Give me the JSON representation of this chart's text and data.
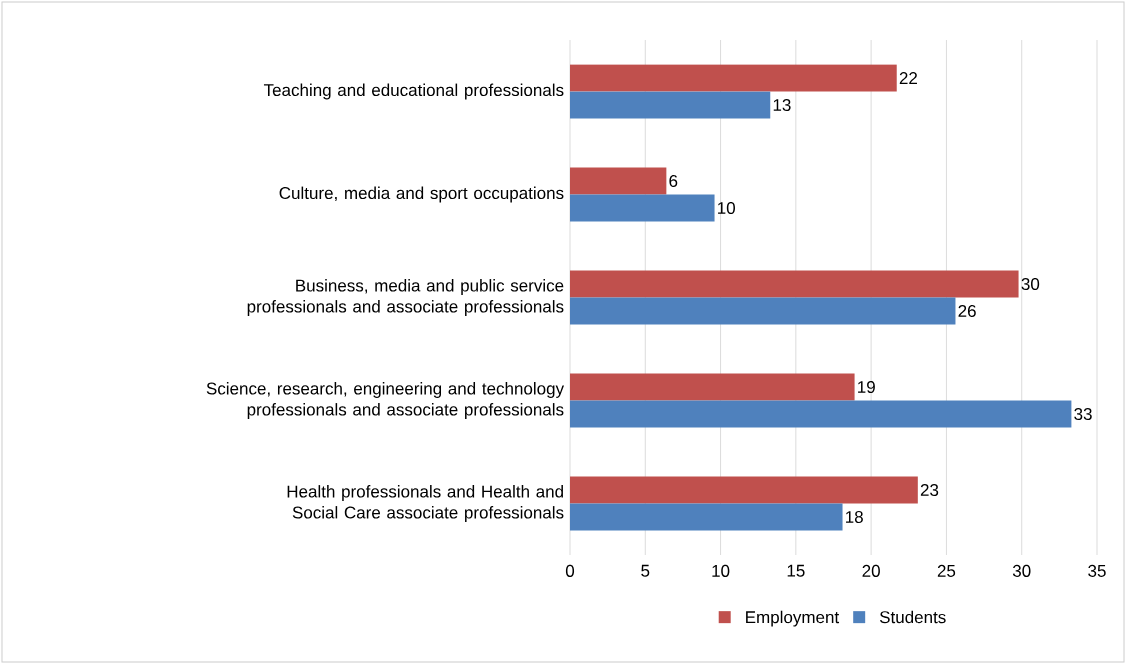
{
  "chart_data": {
    "type": "bar",
    "orientation": "horizontal",
    "categories": [
      "Teaching and educational professionals",
      "Culture, media and sport occupations",
      "Business, media and public service professionals and associate professionals",
      "Science, research, engineering and technology professionals and associate professionals",
      "Health professionals and Health and Social Care associate professionals"
    ],
    "series": [
      {
        "name": "Employment",
        "color": "#c0504d",
        "values": [
          21.7,
          6.4,
          29.8,
          18.9,
          23.1
        ],
        "value_labels": [
          "22",
          "6",
          "30",
          "19",
          "23"
        ]
      },
      {
        "name": "Students",
        "color": "#4f81bd",
        "values": [
          13.3,
          9.6,
          25.6,
          33.3,
          18.1
        ],
        "value_labels": [
          "13",
          "10",
          "26",
          "33",
          "18"
        ]
      }
    ],
    "xlim": [
      0,
      35
    ],
    "xticks": [
      0,
      5,
      10,
      15,
      20,
      25,
      30,
      35
    ],
    "grid": "x",
    "legend": "bottom"
  }
}
